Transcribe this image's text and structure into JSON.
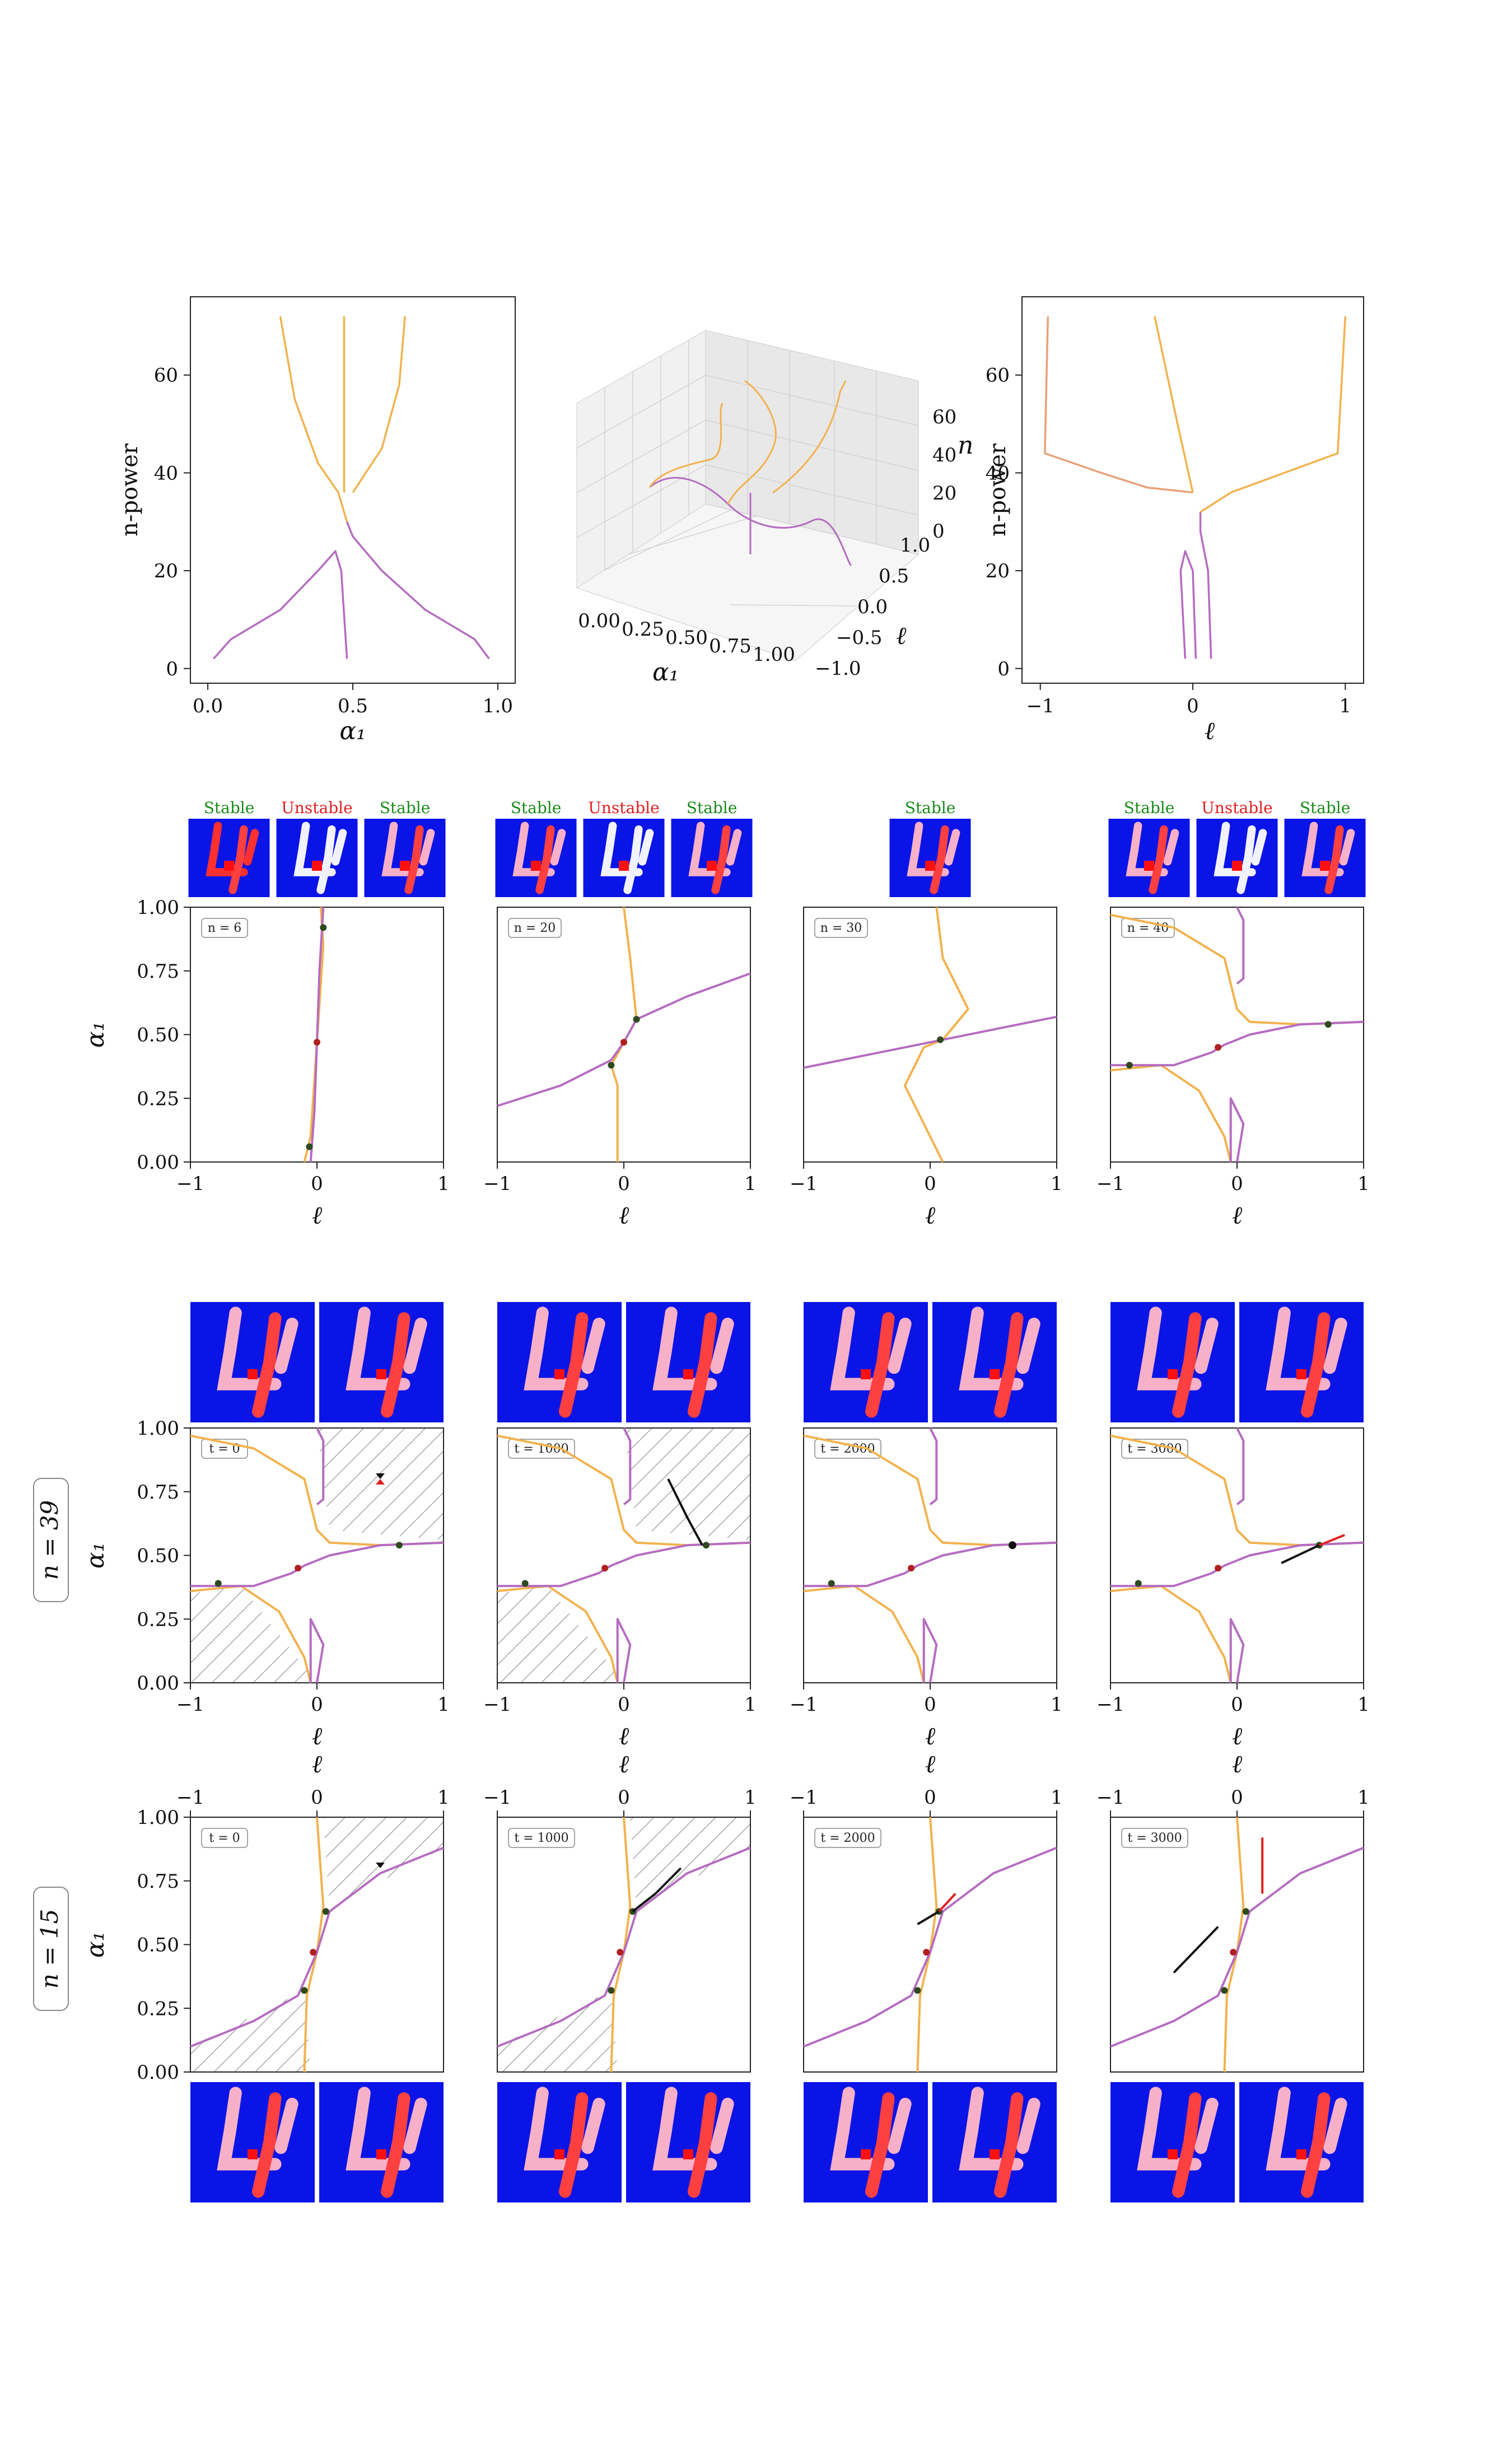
{
  "colors": {
    "purple": "#b56cc0",
    "orange": "#f2b24e",
    "salmon": "#e8a07a",
    "stable": "#1a8a1a",
    "unstable": "#e02020",
    "point": "#2e4a1f",
    "thumbBg": "#0a14e6"
  },
  "top_row": {
    "left": {
      "xlabel": "α₁",
      "ylabel": "n-power",
      "xticks": [
        "0.0",
        "0.5",
        "1.0"
      ],
      "yticks": [
        "0",
        "20",
        "40",
        "60"
      ]
    },
    "mid": {
      "xlabel": "α₁",
      "ylabel": "ℓ",
      "zlabel": "n",
      "xticks": [
        "0.00",
        "0.25",
        "0.50",
        "0.75",
        "1.00"
      ],
      "yticks": [
        "−1.0",
        "−0.5",
        "0.0",
        "0.5",
        "1.0"
      ],
      "zticks": [
        "0",
        "20",
        "40",
        "60"
      ]
    },
    "right": {
      "xlabel": "ℓ",
      "ylabel": "n-power",
      "xticks": [
        "−1",
        "0",
        "1"
      ],
      "yticks": [
        "0",
        "20",
        "40",
        "60"
      ]
    }
  },
  "grid_axes": {
    "xlabel": "ℓ",
    "ylabel": "α₁",
    "xticks": [
      "−1",
      "0",
      "1"
    ],
    "yticks": [
      "0.00",
      "0.25",
      "0.50",
      "0.75",
      "1.00"
    ]
  },
  "row2": {
    "panels": [
      {
        "tag": "n = 6",
        "labels": [
          "Stable",
          "Unstable",
          "Stable"
        ]
      },
      {
        "tag": "n = 20",
        "labels": [
          "Stable",
          "Unstable",
          "Stable"
        ]
      },
      {
        "tag": "n = 30",
        "labels": [
          "Stable"
        ]
      },
      {
        "tag": "n = 40",
        "labels": [
          "Stable",
          "Unstable",
          "Stable"
        ]
      }
    ]
  },
  "row3": {
    "label": "n = 39",
    "tags": [
      "t = 0",
      "t = 1000",
      "t = 2000",
      "t = 3000"
    ]
  },
  "row4": {
    "label": "n = 15",
    "tags": [
      "t = 0",
      "t = 1000",
      "t = 2000",
      "t = 3000"
    ]
  },
  "chart_data": [
    {
      "type": "line",
      "panel": "n-power vs α₁",
      "series": [
        {
          "color": "purple",
          "points": [
            [
              0.02,
              2
            ],
            [
              0.08,
              6
            ],
            [
              0.25,
              12
            ],
            [
              0.38,
              20
            ],
            [
              0.44,
              24
            ],
            [
              0.46,
              20
            ],
            [
              0.48,
              2
            ]
          ]
        },
        {
          "color": "purple",
          "points": [
            [
              0.97,
              2
            ],
            [
              0.92,
              6
            ],
            [
              0.75,
              12
            ],
            [
              0.6,
              20
            ],
            [
              0.5,
              27
            ],
            [
              0.48,
              30
            ]
          ]
        },
        {
          "color": "orange",
          "points": [
            [
              0.48,
              30
            ],
            [
              0.45,
              36
            ],
            [
              0.38,
              42
            ],
            [
              0.3,
              55
            ],
            [
              0.25,
              72
            ]
          ]
        },
        {
          "color": "orange",
          "points": [
            [
              0.5,
              36
            ],
            [
              0.6,
              45
            ],
            [
              0.66,
              58
            ],
            [
              0.68,
              72
            ]
          ]
        },
        {
          "color": "orange",
          "points": [
            [
              0.47,
              36
            ],
            [
              0.47,
              72
            ]
          ]
        }
      ]
    },
    {
      "type": "line",
      "panel": "n-power vs ℓ",
      "series": [
        {
          "color": "purple",
          "points": [
            [
              -0.05,
              2
            ],
            [
              -0.08,
              20
            ],
            [
              -0.05,
              24
            ],
            [
              0,
              20
            ],
            [
              0.02,
              2
            ]
          ]
        },
        {
          "color": "purple",
          "points": [
            [
              0.12,
              2
            ],
            [
              0.1,
              20
            ],
            [
              0.05,
              28
            ],
            [
              0.05,
              32
            ]
          ]
        },
        {
          "color": "orange",
          "points": [
            [
              0.05,
              32
            ],
            [
              0.25,
              36
            ],
            [
              0.6,
              40
            ],
            [
              0.95,
              44
            ],
            [
              1.0,
              72
            ]
          ]
        },
        {
          "color": "salmon",
          "points": [
            [
              -0.95,
              72
            ],
            [
              -0.97,
              44
            ],
            [
              -0.6,
              40
            ],
            [
              -0.3,
              37
            ],
            [
              0,
              36
            ]
          ]
        },
        {
          "color": "orange",
          "points": [
            [
              0,
              36
            ],
            [
              -0.1,
              50
            ],
            [
              -0.25,
              72
            ]
          ]
        }
      ]
    }
  ]
}
